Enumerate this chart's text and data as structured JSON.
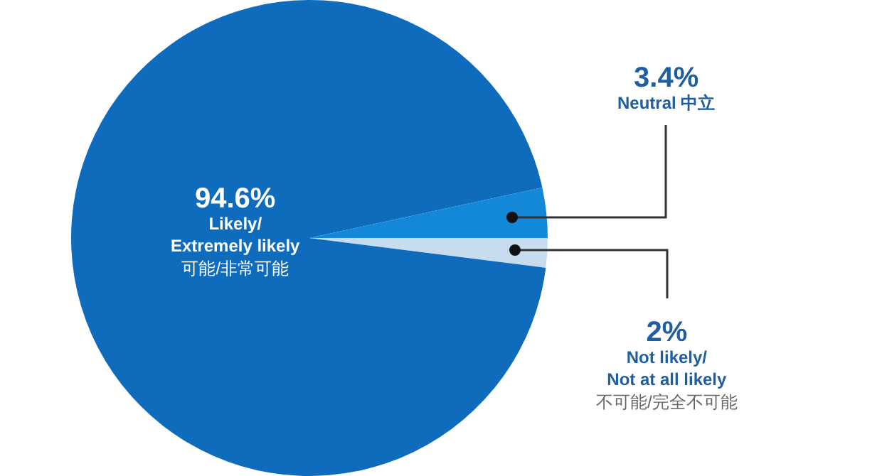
{
  "chart_data": {
    "type": "pie",
    "categories": [
      "Not likely/\nNot at all likely\n不可能/完全不可能",
      "Likely/\nExtremely likely\n可能/非常可能",
      "Neutral 中立"
    ],
    "values": [
      2,
      94.6,
      3.4
    ],
    "value_labels": [
      "2%",
      "94.6%",
      "3.4%"
    ],
    "colors": [
      "#c8dcef",
      "#0f6cbd",
      "#1488d8"
    ],
    "legend": false
  }
}
